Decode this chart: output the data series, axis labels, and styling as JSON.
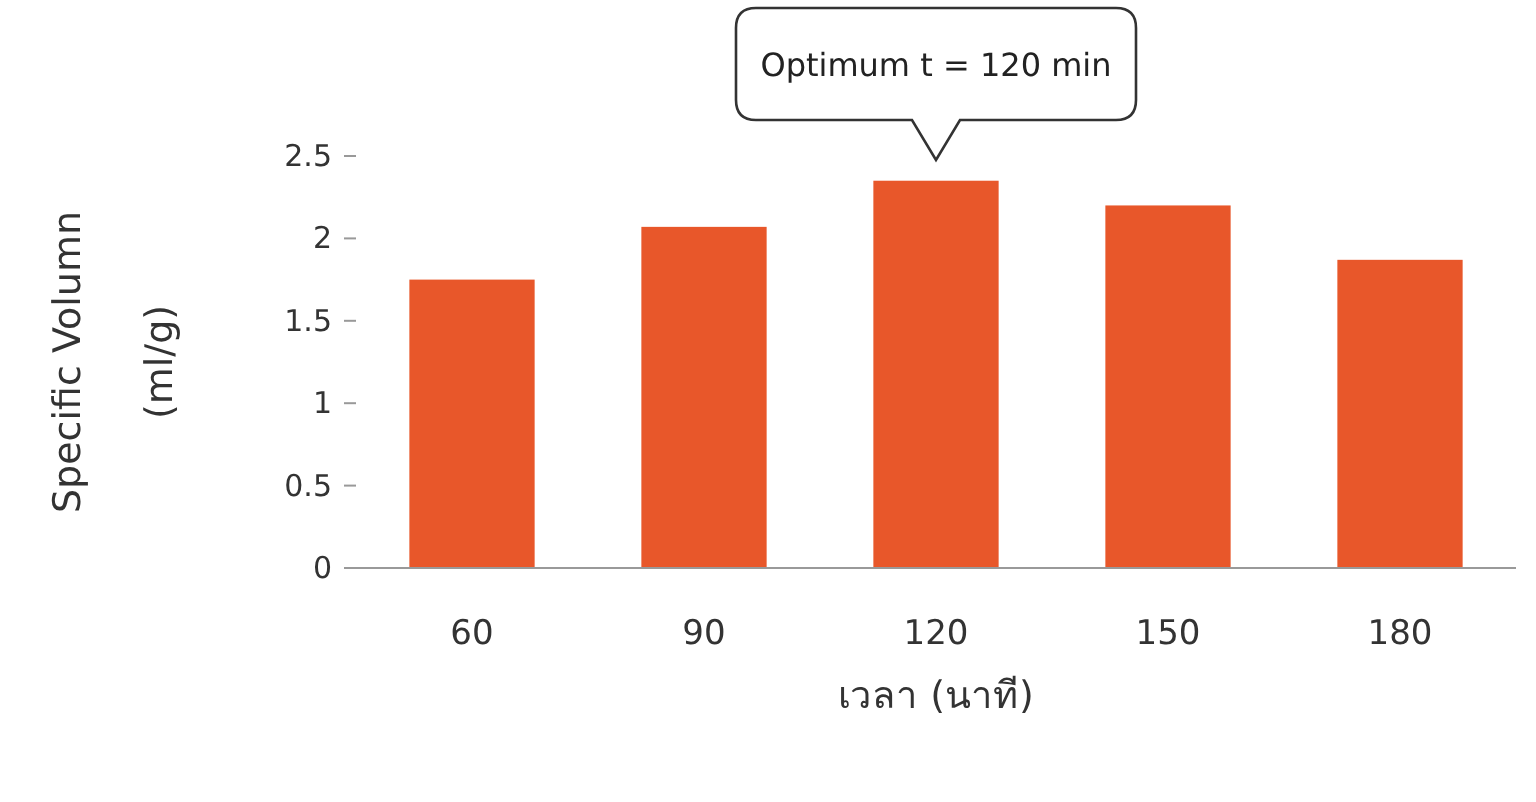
{
  "chart_data": {
    "type": "bar",
    "xlabel": "เวลา (นาที)",
    "ylabel": "Specific Volumn\n(ml/g)",
    "categories": [
      "60",
      "90",
      "120",
      "150",
      "180"
    ],
    "values": [
      1.75,
      2.07,
      2.35,
      2.2,
      1.87
    ],
    "color": "#e8572a",
    "ylim": [
      0,
      2.5
    ],
    "yticks": [
      0,
      0.5,
      1,
      1.5,
      2,
      2.5
    ],
    "grid": false,
    "annotations": [
      "Optimum t = 120 min"
    ]
  }
}
